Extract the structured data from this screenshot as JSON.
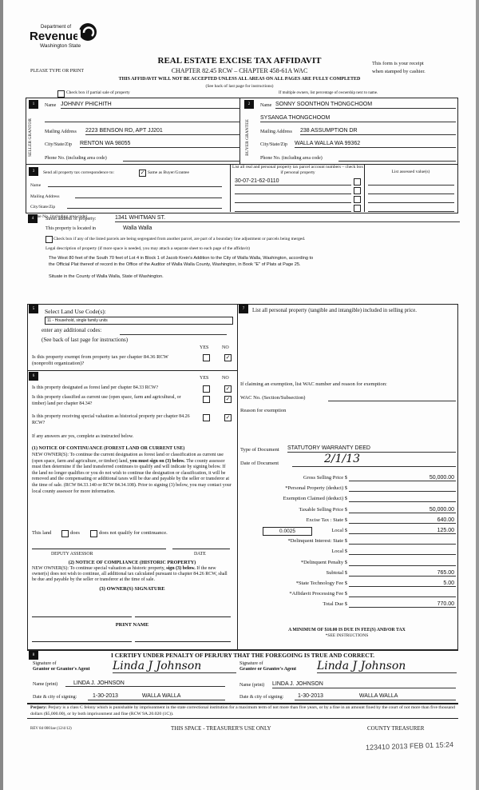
{
  "header": {
    "logo_line1": "Department of",
    "logo_line2": "Revenue",
    "logo_line3": "Washington State",
    "title": "REAL ESTATE EXCISE TAX AFFIDAVIT",
    "chapter": "CHAPTER 82.45 RCW – CHAPTER 458-61A WAC",
    "type_print": "PLEASE TYPE OR PRINT",
    "receipt1": "This form is your receipt",
    "receipt2": "when stamped by cashier.",
    "warning": "THIS AFFIDAVIT WILL NOT BE ACCEPTED UNLESS ALL AREAS ON ALL PAGES ARE FULLY COMPLETED",
    "see_back": "(See back of last page for instructions)",
    "partial_sale": "Check box if partial sale of property",
    "multiple_owners": "If multiple owners, list percentage of ownership next to name."
  },
  "seller": {
    "num": "1",
    "side": "SELLER GRANTOR",
    "name_label": "Name",
    "name": "JOHNNY PHICHITH",
    "mail_label": "Mailing Address",
    "mail": "2223 BENSON RD, APT JJ201",
    "city_label": "City/State/Zip",
    "city": "RENTON WA  98055",
    "phone_label": "Phone No. (including area code)"
  },
  "buyer": {
    "num": "2",
    "side": "BUYER GRANTEE",
    "name_label": "Name",
    "name": "SONNY SOONTHON THONGCHOOM",
    "name2": "SYSANGA THONGCHOOM",
    "mail_label": "Mailing Address",
    "mail": "238 ASSUMPTION DR",
    "city_label": "City/State/Zip",
    "city": "WALLA WALLA WA  99362",
    "phone_label": "Phone No. (including area code)"
  },
  "sec3": {
    "num": "3",
    "send": "Send all property tax correspondence to:",
    "same": "Same as Buyer/Grantee",
    "same_checked": true,
    "name_label": "Name",
    "mail_label": "Mailing Address",
    "city_label": "City/State/Zip",
    "phone_label": "Phone No. (including area code)",
    "parcel_header": "List all real and personal property tax parcel account numbers – check box if personal property",
    "assessed_header": "List assessed value(s)",
    "parcels": [
      "30-07-21-62-0110",
      "",
      "",
      ""
    ]
  },
  "sec4": {
    "num": "4",
    "street_label": "Street address of property:",
    "street": "1341 WHITMAN ST.",
    "located_label": "This property is located in",
    "located": "Walla Walla",
    "segregated": "Check box if any of the listed parcels are being segregated from another parcel, are part of a boundary line adjustment or parcels being merged.",
    "legal_label": "Legal description of property (if more space is needed, you may attach a separate sheet to each page of the affidavit)",
    "legal1": "The West 80 feet of the South 70 feet of Lot 4 in Block 1 of Jacob Krein's Addition to the City of Walla Walla, Washington, according to",
    "legal2": "the Official Plat thereof of record in the Office of the Auditor of Walla Walla County, Washington, in Book \"E\" of Plats at Page 25.",
    "situate": "Situate in the County of Walla Walla, State of Washington."
  },
  "sec5": {
    "num": "5",
    "label": "Select Land Use Code(s):",
    "code": "11 - Household, single family units",
    "additional": "enter any additional codes:",
    "see_back": "(See back of last page for instructions)",
    "yes": "YES",
    "no": "NO",
    "exempt_q": "Is this property exempt from property tax per chapter 84.36 RCW (nonprofit organization)?",
    "exempt_answer": "NO"
  },
  "sec6": {
    "num": "6",
    "yes": "YES",
    "no": "NO",
    "questions": [
      {
        "q": "Is this property designated as forest land per chapter 84.33 RCW?",
        "answer": "NO"
      },
      {
        "q": "Is this property classified as current use (open space, farm and agricultural, or timber) land per chapter 84.34?",
        "answer": "NO"
      },
      {
        "q": "Is this property receiving special valuation as historical property per chapter 84.26 RCW?",
        "answer": "NO"
      }
    ],
    "if_yes": "If any answers are yes, complete as instructed below.",
    "n1_title": "(1) NOTICE OF CONTINUANCE  (FOREST LAND OR CURRENT USE)",
    "n1_text_a": "NEW OWNER(S): To continue the current designation as forest land or classification as current use (open space, farm and agriculture, or timber) land,",
    "n1_bold": "you must sign on (3) below.",
    "n1_text_b": "The county assessor must then determine if the land transferred continues to qualify and will indicate by signing below. If the land no longer qualifies or you do not wish to continue the designation or classification, it will be removed and the compensating or additional taxes will be due and payable by the seller or transferor at the time of sale. (RCW 84.33.140 or RCW 84.34.108). Prior to signing (3) below, you may contact your local county assessor for more information.",
    "this_land": "This land",
    "does": "does",
    "does_not": "does not qualify for continuance.",
    "deputy": "DEPUTY ASSESSOR",
    "date": "DATE",
    "n2_title": "(2) NOTICE OF COMPLIANCE (HISTORIC PROPERTY)",
    "n2_a": "NEW OWNER(S): To continue special valuation as historic property,",
    "n2_bold": "sign (3) below.",
    "n2_b": "If the new owner(s) does not wish to continue, all additional tax calculated pursuant to chapter 84.26 RCW, shall be due and payable by the seller or transferor at the time of sale.",
    "n3_title": "(3)  OWNER(S) SIGNATURE",
    "print_name": "PRINT NAME"
  },
  "sec7": {
    "num": "7",
    "label": "List all  personal property (tangible and intangible) included in selling price.",
    "exempt_label": "If claiming an exemption, list WAC number and reason for exemption:",
    "wac_label": "WAC No. (Section/Subsection)",
    "reason_label": "Reason for exemption",
    "doc_type_label": "Type of Document",
    "doc_type": "STATUTORY WARRANTY DEED",
    "doc_date_label": "Date of Document",
    "doc_date": "2/1/13",
    "local_rate": "0.0025",
    "lines": [
      {
        "label": "Gross Selling Price $",
        "value": "50,000.00"
      },
      {
        "label": "*Personal Property (deduct) $",
        "value": ""
      },
      {
        "label": "Exemption Claimed (deduct) $",
        "value": ""
      },
      {
        "label": "Taxable Selling Price $",
        "value": "50,000.00"
      },
      {
        "label": "Excise Tax : State $",
        "value": "640.00"
      },
      {
        "label": "Local $",
        "value": "125.00"
      },
      {
        "label": "*Delinquent Interest: State $",
        "value": ""
      },
      {
        "label": "Local $",
        "value": ""
      },
      {
        "label": "*Delinquent Penalty $",
        "value": ""
      },
      {
        "label": "Subtotal $",
        "value": "765.00"
      },
      {
        "label": "*State Technology Fee $",
        "value": "5.00"
      },
      {
        "label": "*Affidavit Processing Fee $",
        "value": ""
      },
      {
        "label": "Total Due $",
        "value": "770.00"
      }
    ],
    "minimum": "A MINIMUM OF $10.00 IS DUE IN FEE(S) AND/OR TAX",
    "see_instr": "*SEE INSTRUCTIONS"
  },
  "sec8": {
    "num": "8",
    "certify": "I CERTIFY UNDER PENALTY OF PERJURY THAT THE FOREGOING IS TRUE AND CORRECT.",
    "grantor_sig1": "Signature of",
    "grantor_sig2": "Grantor or Grantor's Agent",
    "grantee_sig1": "Signature of",
    "grantee_sig2": "Grantee or Grantee's Agent",
    "signature": "Linda J Johnson",
    "name_label": "Name (print)",
    "grantor_name": "LINDA J. JOHNSON",
    "grantee_name": "LINDA J. JOHNSON",
    "date_label": "Date & city of signing:",
    "grantor_date": "1-30-2013",
    "grantor_city": "WALLA WALLA",
    "grantee_date": "1-30-2013",
    "grantee_city": "WALLA WALLA"
  },
  "footer": {
    "perjury_bold": "Perjury:",
    "perjury": "Perjury is a class C felony which is punishable by imprisonment in the state correctional institution for a maximum term of not more than five years, or by a fine in an amount fixed by the court of not more than five thousand dollars ($5,000.00), or by both imprisonment and fine (RCW 9A.20.020 (1C)).",
    "rev": "REV 84 0001ae (12/4/12)",
    "treasurer_space": "THIS SPACE - TREASURER'S USE ONLY",
    "county_treasurer": "COUNTY TREASURER",
    "stamp": "123410 2013 FEB 01 15:24"
  }
}
